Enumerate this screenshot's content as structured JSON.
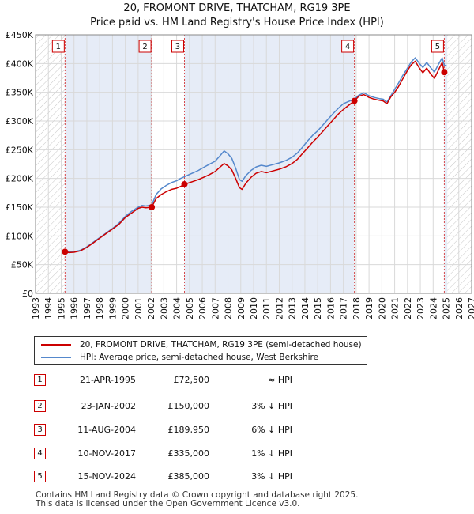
{
  "chart_data": {
    "type": "line",
    "title": "20, FROMONT DRIVE, THATCHAM, RG19 3PE",
    "subtitle": "Price paid vs. HM Land Registry's House Price Index (HPI)",
    "xlim": [
      1993,
      2027
    ],
    "ylim": [
      0,
      450000
    ],
    "y_ticks": [
      {
        "value": 0,
        "label": "£0"
      },
      {
        "value": 50000,
        "label": "£50K"
      },
      {
        "value": 100000,
        "label": "£100K"
      },
      {
        "value": 150000,
        "label": "£150K"
      },
      {
        "value": 200000,
        "label": "£200K"
      },
      {
        "value": 250000,
        "label": "£250K"
      },
      {
        "value": 300000,
        "label": "£300K"
      },
      {
        "value": 350000,
        "label": "£350K"
      },
      {
        "value": 400000,
        "label": "£400K"
      },
      {
        "value": 450000,
        "label": "£450K"
      }
    ],
    "x_ticks": [
      "1993",
      "1994",
      "1995",
      "1996",
      "1997",
      "1998",
      "1999",
      "2000",
      "2001",
      "2002",
      "2003",
      "2004",
      "2005",
      "2006",
      "2007",
      "2008",
      "2009",
      "2010",
      "2011",
      "2012",
      "2013",
      "2014",
      "2015",
      "2016",
      "2017",
      "2018",
      "2019",
      "2020",
      "2021",
      "2022",
      "2023",
      "2024",
      "2025",
      "2026",
      "2027"
    ],
    "grid": true,
    "legend_placement": "below",
    "hatched_ranges": [
      [
        1993,
        1995.3
      ],
      [
        2025.1,
        2027
      ]
    ],
    "shaded_ranges": [
      [
        1995.3,
        2002.06
      ],
      [
        2004.61,
        2017.86
      ],
      [
        2024.87,
        2025.1
      ]
    ],
    "series": [
      {
        "name": "20, FROMONT DRIVE, THATCHAM, RG19 3PE (semi-detached house)",
        "color": "#cc0000",
        "x": [
          1995.3,
          1995.6,
          1996,
          1996.5,
          1997,
          1997.5,
          1998,
          1998.5,
          1999,
          1999.5,
          2000,
          2000.5,
          2001,
          2001.3,
          2001.6,
          2002.06,
          2002.4,
          2002.8,
          2003.2,
          2003.6,
          2004,
          2004.3,
          2004.61,
          2004.9,
          2005.3,
          2005.7,
          2006,
          2006.5,
          2007,
          2007.4,
          2007.7,
          2008,
          2008.3,
          2008.6,
          2008.9,
          2009.1,
          2009.4,
          2009.8,
          2010.2,
          2010.6,
          2011,
          2011.5,
          2012,
          2012.5,
          2013,
          2013.4,
          2013.8,
          2014.2,
          2014.6,
          2015,
          2015.4,
          2015.8,
          2016.2,
          2016.6,
          2017,
          2017.4,
          2017.86,
          2018.2,
          2018.6,
          2019,
          2019.4,
          2019.8,
          2020.1,
          2020.4,
          2020.7,
          2021,
          2021.3,
          2021.6,
          2022,
          2022.3,
          2022.6,
          2022.9,
          2023.2,
          2023.5,
          2023.8,
          2024.1,
          2024.4,
          2024.7,
          2024.87,
          2025.05
        ],
        "values": [
          72500,
          71000,
          71500,
          74000,
          80000,
          88000,
          96000,
          104000,
          112000,
          120000,
          132000,
          140000,
          148000,
          150000,
          149000,
          150000,
          165000,
          172000,
          177000,
          181000,
          183000,
          186000,
          189950,
          192000,
          195000,
          198000,
          201000,
          206000,
          212000,
          220000,
          226000,
          222000,
          215000,
          200000,
          184000,
          181000,
          192000,
          202000,
          209000,
          212000,
          210000,
          213000,
          216000,
          220000,
          226000,
          233000,
          243000,
          253000,
          263000,
          272000,
          282000,
          292000,
          302000,
          312000,
          320000,
          327000,
          335000,
          343000,
          346000,
          341000,
          338000,
          336000,
          335000,
          330000,
          342000,
          350000,
          360000,
          372000,
          388000,
          398000,
          404000,
          393000,
          384000,
          392000,
          382000,
          374000,
          388000,
          402000,
          385000,
          383000
        ]
      },
      {
        "name": "HPI: Average price, semi-detached house, West Berkshire",
        "color": "#5588cc",
        "x": [
          1995.3,
          1995.6,
          1996,
          1996.5,
          1997,
          1997.5,
          1998,
          1998.5,
          1999,
          1999.5,
          2000,
          2000.5,
          2001,
          2001.3,
          2001.6,
          2002.06,
          2002.4,
          2002.8,
          2003.2,
          2003.6,
          2004,
          2004.3,
          2004.61,
          2004.9,
          2005.3,
          2005.7,
          2006,
          2006.5,
          2007,
          2007.4,
          2007.7,
          2008,
          2008.3,
          2008.6,
          2008.9,
          2009.1,
          2009.4,
          2009.8,
          2010.2,
          2010.6,
          2011,
          2011.5,
          2012,
          2012.5,
          2013,
          2013.4,
          2013.8,
          2014.2,
          2014.6,
          2015,
          2015.4,
          2015.8,
          2016.2,
          2016.6,
          2017,
          2017.4,
          2017.86,
          2018.2,
          2018.6,
          2019,
          2019.4,
          2019.8,
          2020.1,
          2020.4,
          2020.7,
          2021,
          2021.3,
          2021.6,
          2022,
          2022.3,
          2022.6,
          2022.9,
          2023.2,
          2023.5,
          2023.8,
          2024.1,
          2024.4,
          2024.7,
          2024.87,
          2025.05
        ],
        "values": [
          73000,
          72000,
          72500,
          75000,
          81000,
          89000,
          97000,
          105000,
          113000,
          122000,
          134000,
          143000,
          150000,
          153000,
          152000,
          154000,
          172000,
          182000,
          188000,
          193000,
          196000,
          200000,
          203000,
          206000,
          210000,
          214000,
          218000,
          224000,
          230000,
          240000,
          248000,
          243000,
          235000,
          218000,
          198000,
          195000,
          205000,
          214000,
          220000,
          223000,
          221000,
          224000,
          227000,
          231000,
          237000,
          244000,
          254000,
          265000,
          275000,
          283000,
          293000,
          303000,
          313000,
          322000,
          330000,
          334000,
          338000,
          345000,
          349000,
          344000,
          341000,
          339000,
          338000,
          333000,
          344000,
          355000,
          366000,
          378000,
          392000,
          403000,
          410000,
          401000,
          393000,
          402000,
          393000,
          385000,
          398000,
          410000,
          397000,
          396000
        ]
      }
    ],
    "sales": [
      {
        "num": "1",
        "x": 1995.3,
        "y": 72500
      },
      {
        "num": "2",
        "x": 2002.06,
        "y": 150000
      },
      {
        "num": "3",
        "x": 2004.61,
        "y": 189950
      },
      {
        "num": "4",
        "x": 2017.86,
        "y": 335000
      },
      {
        "num": "5",
        "x": 2024.87,
        "y": 385000
      }
    ]
  },
  "table": [
    {
      "num": "1",
      "date": "21-APR-1995",
      "price": "£72,500",
      "hpi": "≈ HPI"
    },
    {
      "num": "2",
      "date": "23-JAN-2002",
      "price": "£150,000",
      "hpi": "3% ↓ HPI"
    },
    {
      "num": "3",
      "date": "11-AUG-2004",
      "price": "£189,950",
      "hpi": "6% ↓ HPI"
    },
    {
      "num": "4",
      "date": "10-NOV-2017",
      "price": "£335,000",
      "hpi": "1% ↓ HPI"
    },
    {
      "num": "5",
      "date": "15-NOV-2024",
      "price": "£385,000",
      "hpi": "3% ↓ HPI"
    }
  ],
  "footer": {
    "line1": "Contains HM Land Registry data © Crown copyright and database right 2025.",
    "line2": "This data is licensed under the Open Government Licence v3.0."
  }
}
